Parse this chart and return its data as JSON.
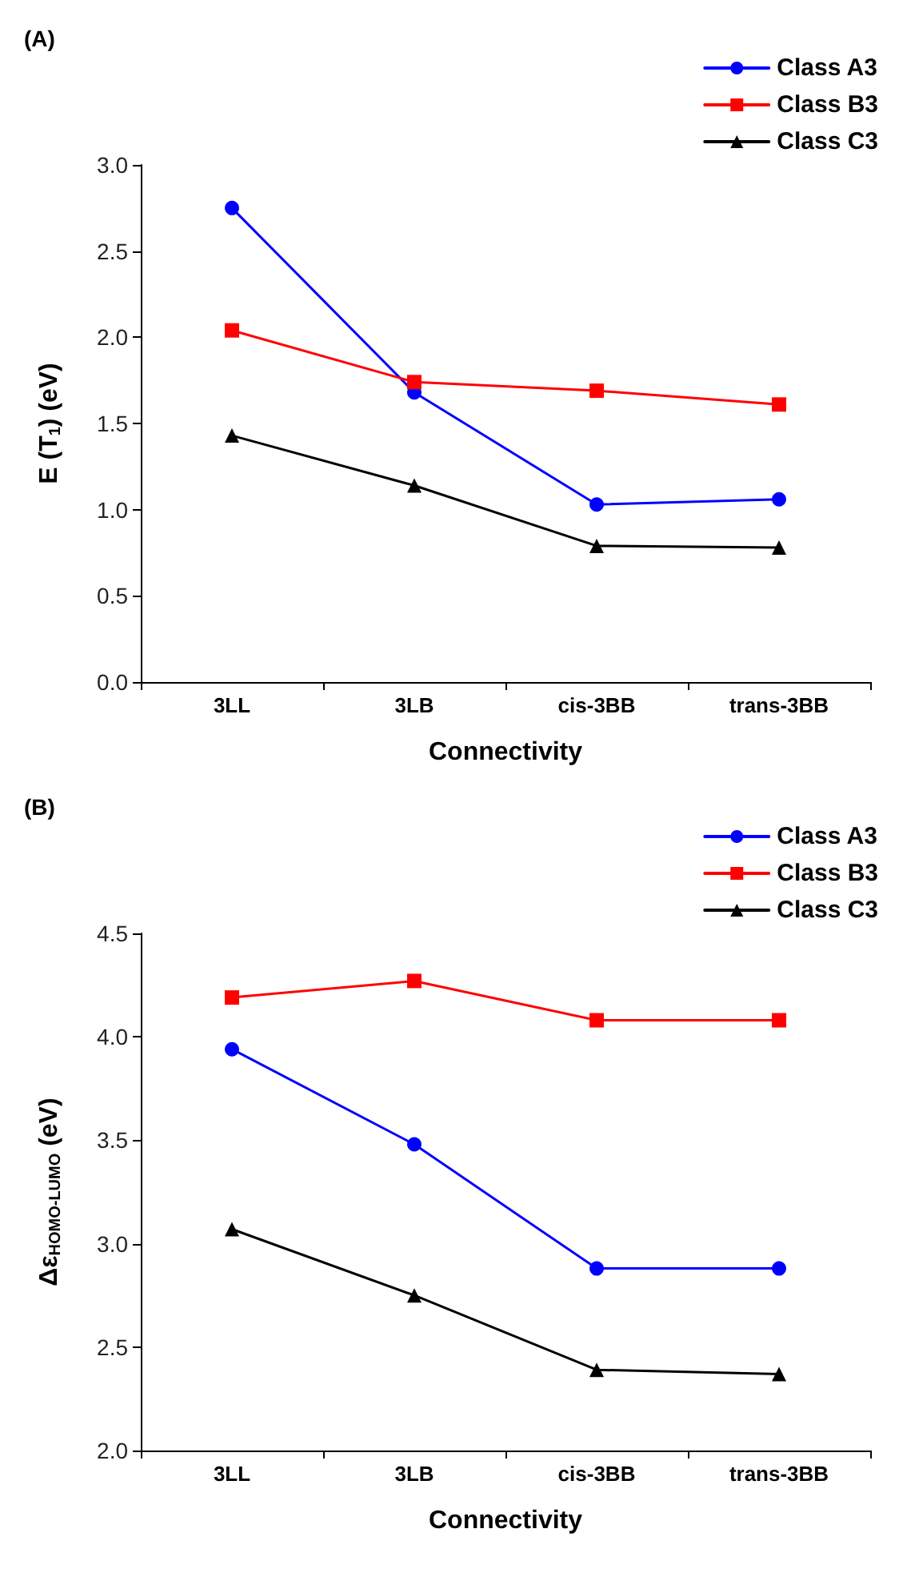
{
  "chart_data": [
    {
      "type": "line",
      "title": "(A)",
      "xlabel": "Connectivity",
      "ylabel": "E (T$_{1}$) (eV)",
      "categories": [
        "3LL",
        "3LB",
        "cis-3BB",
        "trans-3BB"
      ],
      "series": [
        {
          "name": "Class A3",
          "color": "#0000ff",
          "marker": "circle",
          "values": [
            2.75,
            1.68,
            1.03,
            1.06
          ]
        },
        {
          "name": "Class B3",
          "color": "#ff0000",
          "marker": "square",
          "values": [
            2.04,
            1.74,
            1.69,
            1.61
          ]
        },
        {
          "name": "Class C3",
          "color": "#000000",
          "marker": "triangle",
          "values": [
            1.43,
            1.14,
            0.79,
            0.78
          ]
        }
      ],
      "ylim": [
        0,
        3
      ],
      "yticks": [
        {
          "value": 0,
          "label": "0.0"
        },
        {
          "value": 0.5,
          "label": "0.5"
        },
        {
          "value": 1,
          "label": "1.0"
        },
        {
          "value": 1.5,
          "label": "1.5"
        },
        {
          "value": 2,
          "label": "2.0"
        },
        {
          "value": 2.5,
          "label": "2.5"
        },
        {
          "value": 3,
          "label": "3.0"
        }
      ],
      "grid": false,
      "legend": "top right",
      "line_style": "solid"
    },
    {
      "type": "line",
      "title": "(B)",
      "xlabel": "Connectivity",
      "ylabel": "Δε$_{HOMO-LUMO}$ (eV)",
      "categories": [
        "3LL",
        "3LB",
        "cis-3BB",
        "trans-3BB"
      ],
      "series": [
        {
          "name": "Class A3",
          "color": "#0000ff",
          "marker": "circle",
          "values": [
            3.94,
            3.48,
            2.88,
            2.88
          ]
        },
        {
          "name": "Class B3",
          "color": "#ff0000",
          "marker": "square",
          "values": [
            4.19,
            4.27,
            4.08,
            4.08
          ]
        },
        {
          "name": "Class C3",
          "color": "#000000",
          "marker": "triangle",
          "values": [
            3.07,
            2.75,
            2.39,
            2.37
          ]
        }
      ],
      "ylim": [
        2,
        4.5
      ],
      "yticks": [
        {
          "value": 2,
          "label": "2.0"
        },
        {
          "value": 2.5,
          "label": "2.5"
        },
        {
          "value": 3,
          "label": "3.0"
        },
        {
          "value": 3.5,
          "label": "3.5"
        },
        {
          "value": 4,
          "label": "4.0"
        },
        {
          "value": 4.5,
          "label": "4.5"
        }
      ],
      "grid": false,
      "legend": "top right",
      "line_style": "solid"
    }
  ]
}
